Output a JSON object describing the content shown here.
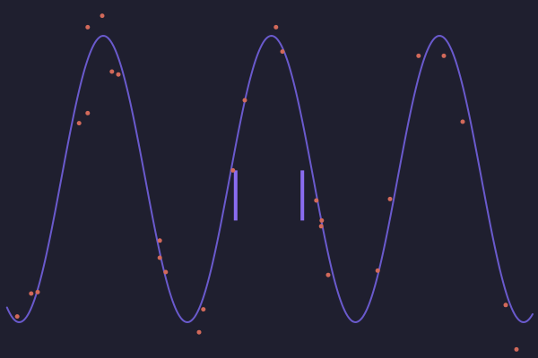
{
  "colors": {
    "background": "#1f1f2f",
    "curve": "#6a5acd",
    "points": "#d2695a",
    "marker": "#8a6cf0"
  },
  "chart_data": {
    "type": "scatter",
    "title": "",
    "xlabel": "",
    "ylabel": "",
    "grid": false,
    "legend": "none",
    "xlim": [
      0,
      10
    ],
    "ylim": [
      -1.25,
      1.25
    ],
    "fit_curve": {
      "function": "sine",
      "amplitude": 1.0,
      "period": 3.125,
      "phase_peak_x": 1.92,
      "offset": 0.0,
      "x_range": [
        0.13,
        9.9
      ]
    },
    "series": [
      {
        "name": "",
        "points": [
          {
            "x": 0.32,
            "y": -0.96
          },
          {
            "x": 0.58,
            "y": -0.8
          },
          {
            "x": 0.7,
            "y": -0.79
          },
          {
            "x": 1.47,
            "y": 0.39
          },
          {
            "x": 1.63,
            "y": 0.46
          },
          {
            "x": 1.63,
            "y": 1.06
          },
          {
            "x": 1.9,
            "y": 1.14
          },
          {
            "x": 2.08,
            "y": 0.75
          },
          {
            "x": 2.2,
            "y": 0.73
          },
          {
            "x": 2.97,
            "y": -0.43
          },
          {
            "x": 2.97,
            "y": -0.55
          },
          {
            "x": 3.08,
            "y": -0.65
          },
          {
            "x": 3.7,
            "y": -1.07
          },
          {
            "x": 3.78,
            "y": -0.91
          },
          {
            "x": 4.33,
            "y": 0.06
          },
          {
            "x": 4.55,
            "y": 0.55
          },
          {
            "x": 5.13,
            "y": 1.06
          },
          {
            "x": 5.25,
            "y": 0.89
          },
          {
            "x": 5.88,
            "y": -0.15
          },
          {
            "x": 5.98,
            "y": -0.29
          },
          {
            "x": 5.97,
            "y": -0.33
          },
          {
            "x": 6.1,
            "y": -0.67
          },
          {
            "x": 7.02,
            "y": -0.64
          },
          {
            "x": 7.25,
            "y": -0.14
          },
          {
            "x": 7.78,
            "y": 0.86
          },
          {
            "x": 8.25,
            "y": 0.86
          },
          {
            "x": 8.6,
            "y": 0.4
          },
          {
            "x": 9.4,
            "y": -0.88
          },
          {
            "x": 9.6,
            "y": -1.19
          }
        ]
      }
    ],
    "markers": [
      {
        "x": 4.38,
        "y_range": [
          -0.29,
          0.06
        ]
      },
      {
        "x": 5.62,
        "y_range": [
          -0.29,
          0.06
        ]
      }
    ]
  }
}
